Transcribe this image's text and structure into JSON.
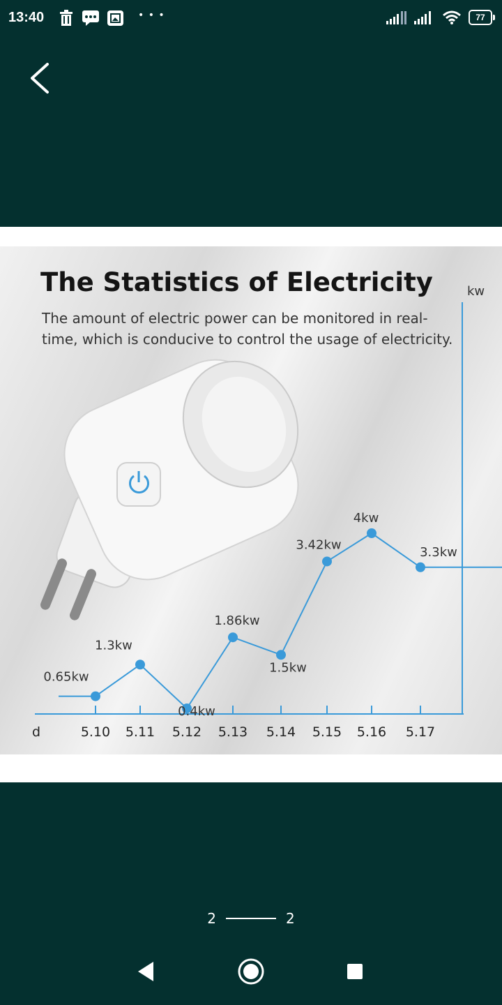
{
  "status_bar": {
    "time": "13:40",
    "overflow": "• • •",
    "battery": "77",
    "icons": [
      "trash-icon",
      "chat-icon",
      "gallery-icon",
      "signal-icon",
      "signal-icon",
      "wifi-icon",
      "battery-icon"
    ]
  },
  "image": {
    "title": "The Statistics of Electricity",
    "subtitle": "The amount of electric power can be monitored in real-time, which is conducive to control the usage of electricity."
  },
  "chart_data": {
    "type": "line",
    "xlabel": "d",
    "ylabel": "kw",
    "categories": [
      "5.10",
      "5.11",
      "5.12",
      "5.13",
      "5.14",
      "5.15",
      "5.16",
      "5.17"
    ],
    "series": [
      {
        "values": [
          0.65,
          1.3,
          0.4,
          1.86,
          1.5,
          3.42,
          4,
          3.3
        ],
        "labels": [
          "0.65kw",
          "1.3kw",
          "0.4kw",
          "1.86kw",
          "1.5kw",
          "3.42kw",
          "4kw",
          "3.3kw"
        ]
      }
    ],
    "color": "#3a9ad9",
    "ylim": [
      0,
      4.5
    ],
    "grid": false
  },
  "pager": {
    "current": "2",
    "total": "2"
  },
  "colors": {
    "background": "#04302f",
    "accent": "#3a9ad9"
  }
}
